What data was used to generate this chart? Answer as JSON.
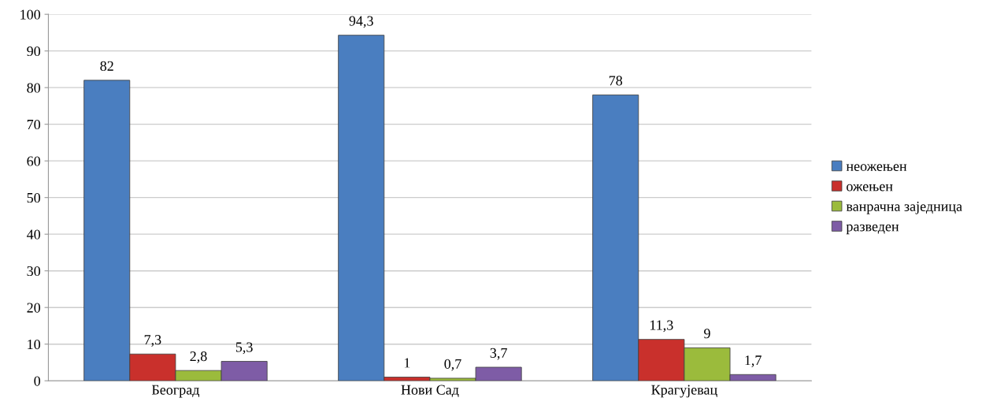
{
  "chart_data": {
    "type": "bar",
    "categories": [
      "Београд",
      "Нови Сад",
      "Крагујевац"
    ],
    "series": [
      {
        "name": "неожењен",
        "color": "#4a7ec0",
        "values": [
          82,
          94.3,
          78
        ],
        "value_labels": [
          "82",
          "94,3",
          "78"
        ]
      },
      {
        "name": "ожењен",
        "color": "#c9302c",
        "values": [
          7.3,
          1,
          11.3
        ],
        "value_labels": [
          "7,3",
          "1",
          "11,3"
        ]
      },
      {
        "name": "ванрачна заједница",
        "color": "#9bbb3c",
        "values": [
          2.8,
          0.7,
          9
        ],
        "value_labels": [
          "2,8",
          "0,7",
          "9"
        ]
      },
      {
        "name": "разведен",
        "color": "#7e5ca6",
        "values": [
          5.3,
          3.7,
          1.7
        ],
        "value_labels": [
          "5,3",
          "3,7",
          "1,7"
        ]
      }
    ],
    "ylim": [
      0,
      100
    ],
    "yticks": [
      0,
      10,
      20,
      30,
      40,
      50,
      60,
      70,
      80,
      90,
      100
    ],
    "grid": "y",
    "legend": "right"
  }
}
